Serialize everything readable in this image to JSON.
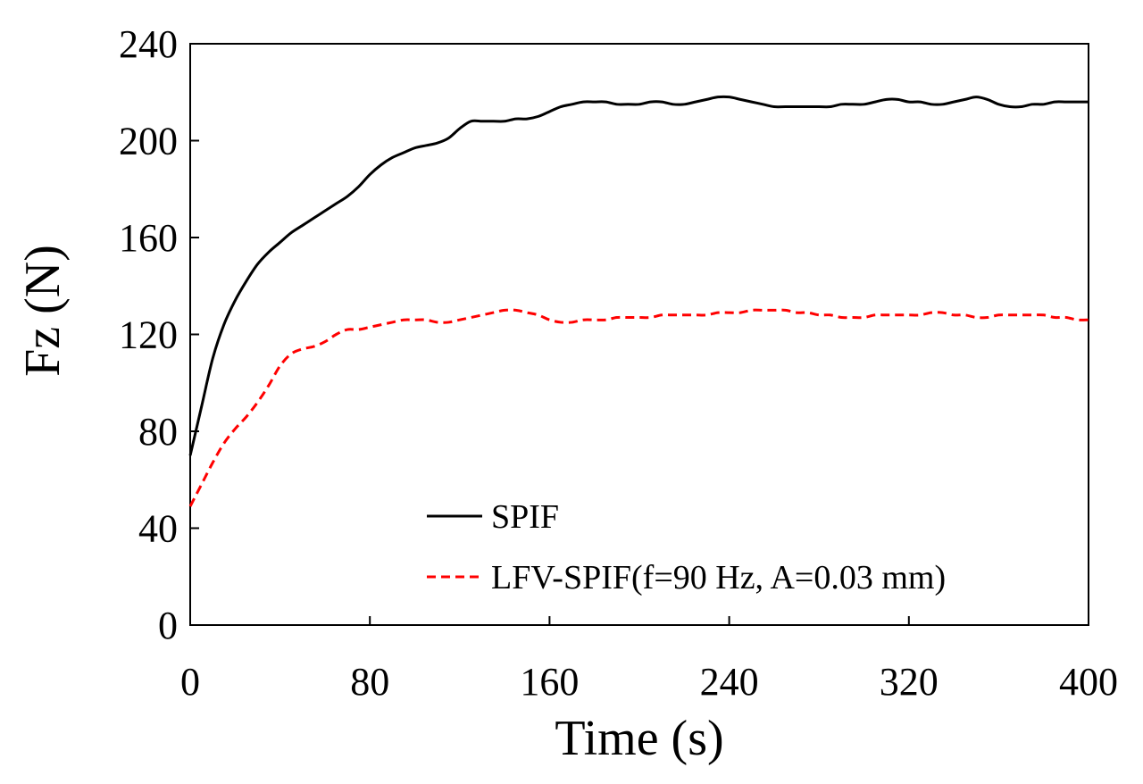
{
  "chart_data": {
    "type": "line",
    "title": "",
    "xlabel": "Time (s)",
    "ylabel": "Fz (N)",
    "xlim": [
      0,
      400
    ],
    "ylim": [
      0,
      240
    ],
    "xticks": [
      0,
      80,
      160,
      240,
      320,
      400
    ],
    "yticks": [
      0,
      40,
      80,
      120,
      160,
      200,
      240
    ],
    "grid": false,
    "legend_position": "bottom-center",
    "series": [
      {
        "name": "SPIF",
        "color": "#000000",
        "style": "solid",
        "x": [
          0,
          5,
          10,
          15,
          20,
          25,
          30,
          35,
          40,
          45,
          50,
          55,
          60,
          65,
          70,
          75,
          80,
          85,
          90,
          95,
          100,
          105,
          110,
          115,
          120,
          125,
          130,
          135,
          140,
          145,
          150,
          155,
          160,
          165,
          170,
          175,
          180,
          185,
          190,
          195,
          200,
          205,
          210,
          215,
          220,
          225,
          230,
          235,
          240,
          245,
          250,
          255,
          260,
          265,
          270,
          275,
          280,
          285,
          290,
          295,
          300,
          305,
          310,
          315,
          320,
          325,
          330,
          335,
          340,
          345,
          350,
          355,
          360,
          365,
          370,
          375,
          380,
          385,
          390,
          395,
          400
        ],
        "y": [
          70,
          90,
          110,
          124,
          134,
          142,
          149,
          154,
          158,
          162,
          165,
          168,
          171,
          174,
          177,
          181,
          186,
          190,
          193,
          195,
          197,
          198,
          199,
          201,
          205,
          208,
          208,
          208,
          208,
          209,
          209,
          210,
          212,
          214,
          215,
          216,
          216,
          216,
          215,
          215,
          215,
          216,
          216,
          215,
          215,
          216,
          217,
          218,
          218,
          217,
          216,
          215,
          214,
          214,
          214,
          214,
          214,
          214,
          215,
          215,
          215,
          216,
          217,
          217,
          216,
          216,
          215,
          215,
          216,
          217,
          218,
          217,
          215,
          214,
          214,
          215,
          215,
          216,
          216,
          216,
          216
        ]
      },
      {
        "name": "LFV-SPIF(f=90 Hz, A=0.03 mm)",
        "color": "#ff0000",
        "style": "dashed",
        "x": [
          0,
          5,
          10,
          15,
          20,
          25,
          30,
          35,
          40,
          45,
          50,
          55,
          60,
          65,
          70,
          75,
          80,
          85,
          90,
          95,
          100,
          105,
          110,
          115,
          120,
          125,
          130,
          135,
          140,
          145,
          150,
          155,
          160,
          165,
          170,
          175,
          180,
          185,
          190,
          195,
          200,
          205,
          210,
          215,
          220,
          225,
          230,
          235,
          240,
          245,
          250,
          255,
          260,
          265,
          270,
          275,
          280,
          285,
          290,
          295,
          300,
          305,
          310,
          315,
          320,
          325,
          330,
          335,
          340,
          345,
          350,
          355,
          360,
          365,
          370,
          375,
          380,
          385,
          390,
          395,
          400
        ],
        "y": [
          49,
          58,
          67,
          75,
          81,
          86,
          92,
          99,
          107,
          112,
          114,
          115,
          117,
          120,
          122,
          122,
          123,
          124,
          125,
          126,
          126,
          126,
          125,
          125,
          126,
          127,
          128,
          129,
          130,
          130,
          129,
          128,
          126,
          125,
          125,
          126,
          126,
          126,
          127,
          127,
          127,
          127,
          128,
          128,
          128,
          128,
          128,
          129,
          129,
          129,
          130,
          130,
          130,
          130,
          129,
          129,
          128,
          128,
          127,
          127,
          127,
          128,
          128,
          128,
          128,
          128,
          129,
          129,
          128,
          128,
          127,
          127,
          128,
          128,
          128,
          128,
          128,
          127,
          127,
          126,
          126
        ]
      }
    ]
  }
}
